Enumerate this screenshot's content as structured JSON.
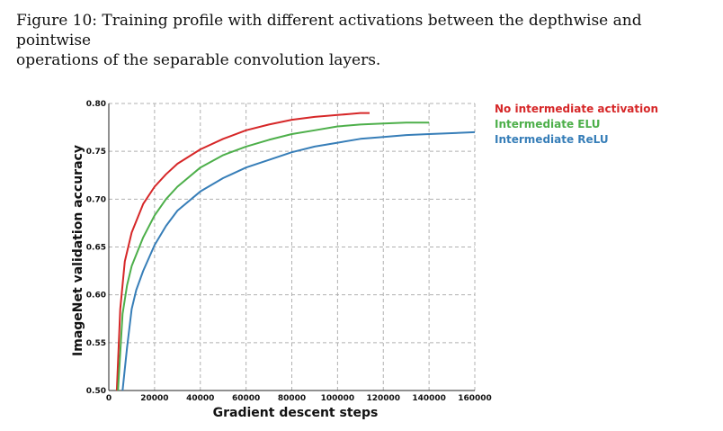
{
  "caption": {
    "line1": "Figure 10: Training profile with different activations between the depthwise and pointwise",
    "line2": "operations of the separable convolution layers."
  },
  "chart_data": {
    "type": "line",
    "xlabel": "Gradient descent steps",
    "ylabel": "ImageNet validation accuracy",
    "xlim": [
      0,
      160000
    ],
    "ylim": [
      0.5,
      0.8
    ],
    "xticks": [
      0,
      20000,
      40000,
      60000,
      80000,
      100000,
      120000,
      140000,
      160000
    ],
    "xtick_labels": [
      "0",
      "20000",
      "40000",
      "60000",
      "80000",
      "100000",
      "120000",
      "140000",
      "160000"
    ],
    "yticks": [
      0.5,
      0.55,
      0.6,
      0.65,
      0.7,
      0.75,
      0.8
    ],
    "ytick_labels": [
      "0.50",
      "0.55",
      "0.60",
      "0.65",
      "0.70",
      "0.75",
      "0.80"
    ],
    "grid": true,
    "legend_position": "right, outside plot",
    "series": [
      {
        "name": "No intermediate activation",
        "color": "#d62728",
        "x": [
          3500,
          5000,
          7000,
          10000,
          15000,
          20000,
          25000,
          30000,
          40000,
          50000,
          60000,
          70000,
          80000,
          90000,
          100000,
          105000,
          110000,
          114000
        ],
        "y": [
          0.5,
          0.585,
          0.635,
          0.665,
          0.695,
          0.713,
          0.726,
          0.737,
          0.752,
          0.763,
          0.772,
          0.778,
          0.783,
          0.786,
          0.788,
          0.789,
          0.79,
          0.79
        ]
      },
      {
        "name": "Intermediate ELU",
        "color": "#4daf4a",
        "x": [
          4000,
          6000,
          8000,
          10000,
          15000,
          20000,
          25000,
          30000,
          40000,
          50000,
          60000,
          70000,
          80000,
          90000,
          100000,
          110000,
          120000,
          130000,
          140000
        ],
        "y": [
          0.5,
          0.58,
          0.61,
          0.63,
          0.66,
          0.683,
          0.7,
          0.713,
          0.733,
          0.746,
          0.755,
          0.762,
          0.768,
          0.772,
          0.776,
          0.778,
          0.779,
          0.78,
          0.78
        ]
      },
      {
        "name": "Intermediate ReLU",
        "color": "#377eb8",
        "x": [
          6000,
          8000,
          10000,
          12000,
          15000,
          20000,
          25000,
          30000,
          40000,
          50000,
          60000,
          70000,
          80000,
          90000,
          100000,
          110000,
          120000,
          130000,
          140000,
          150000,
          160000
        ],
        "y": [
          0.5,
          0.545,
          0.585,
          0.605,
          0.625,
          0.652,
          0.672,
          0.688,
          0.708,
          0.722,
          0.733,
          0.741,
          0.749,
          0.755,
          0.759,
          0.763,
          0.765,
          0.767,
          0.768,
          0.769,
          0.77
        ]
      }
    ]
  }
}
